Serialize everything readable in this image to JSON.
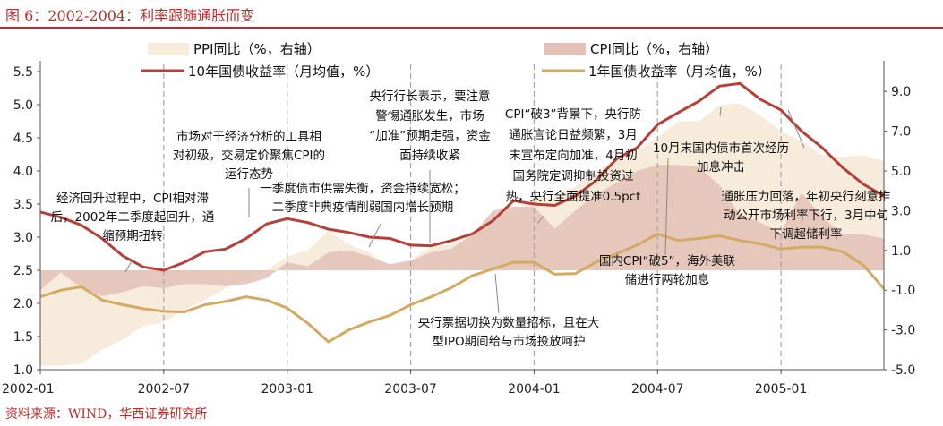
{
  "header": {
    "title": "图 6：2002-2004：利率跟随通胀而变"
  },
  "footer": {
    "source": "资料来源：WIND，华西证券研究所"
  },
  "legend": {
    "ppi": "PPI同比（%，右轴）",
    "cpi": "CPI同比（%，右轴）",
    "y10": "10年国债收益率（月均值，%）",
    "y1": "1年国债收益率（月均值，%）"
  },
  "colors": {
    "ppi": "#f7ebdc",
    "cpi": "#e3c1b6",
    "y10": "#b4403a",
    "y1": "#d3aa64",
    "title": "#b22f2a",
    "vline": "#a6a6a6"
  },
  "annotations": [
    {
      "lines": [
        "经济回升过程中，CPI相对滞",
        "后，2002年二季度起回升，通",
        "缩预期扭转"
      ]
    },
    {
      "lines": [
        "市场对于经济分析的工具相",
        "对初级，交易定价聚焦CPI的",
        "运行态势"
      ]
    },
    {
      "lines": [
        "一季度债市供需失衡，资金持续宽松；",
        "二季度非典疫情削弱国内增长预期"
      ]
    },
    {
      "lines": [
        "央行行长表示，要注意",
        "警惕通胀发生，市场",
        "“加准”预期走强，资金",
        "面持续收紧"
      ]
    },
    {
      "lines": [
        "CPI“破3”背景下，央行防",
        "通胀言论日益频繁，3月",
        "末宣布定向加准，4月初",
        "国务院定调抑制投资过",
        "热，央行全面提准0.5pct"
      ]
    },
    {
      "lines": [
        "10月末国内债市首次经历",
        "加息冲击"
      ]
    },
    {
      "lines": [
        "通胀压力回落，年初央行刻意推",
        "动公开市场利率下行，3月中旬",
        "下调超储利率"
      ]
    },
    {
      "lines": [
        "国内CPI“破5”，海外美联",
        "储进行两轮加息"
      ]
    },
    {
      "lines": [
        "央行票据切换为数量招标，且在大",
        "型IPO期间给与市场投放呵护"
      ]
    }
  ],
  "chart_data": {
    "type": "line",
    "x": [
      "2002-01",
      "2002-02",
      "2002-03",
      "2002-04",
      "2002-05",
      "2002-06",
      "2002-07",
      "2002-08",
      "2002-09",
      "2002-10",
      "2002-11",
      "2002-12",
      "2003-01",
      "2003-02",
      "2003-03",
      "2003-04",
      "2003-05",
      "2003-06",
      "2003-07",
      "2003-08",
      "2003-09",
      "2003-10",
      "2003-11",
      "2003-12",
      "2004-01",
      "2004-02",
      "2004-03",
      "2004-04",
      "2004-05",
      "2004-06",
      "2004-07",
      "2004-08",
      "2004-09",
      "2004-10",
      "2004-11",
      "2004-12",
      "2005-01",
      "2005-02",
      "2005-03",
      "2005-04",
      "2005-05",
      "2005-06"
    ],
    "x_ticks": [
      "2002-01",
      "2002-07",
      "2003-01",
      "2003-07",
      "2004-01",
      "2004-07",
      "2005-01"
    ],
    "y_left": {
      "ticks": [
        "1.0",
        "1.5",
        "2.0",
        "2.5",
        "3.0",
        "3.5",
        "4.0",
        "4.5",
        "5.0",
        "5.5"
      ],
      "ylim": [
        1.0,
        5.5
      ]
    },
    "y_right": {
      "ticks": [
        "-5.0",
        "-3.0",
        "-1.0",
        "1.0",
        "3.0",
        "5.0",
        "7.0",
        "9.0"
      ],
      "ylim": [
        -5.0,
        10.0
      ]
    },
    "vlines": [
      "2002-07",
      "2003-01",
      "2003-07",
      "2004-01",
      "2004-07",
      "2005-01"
    ],
    "series": [
      {
        "name": "PPI同比（%，右轴）",
        "kind": "area",
        "axis": "right",
        "values": [
          -4.8,
          -4.8,
          -4.7,
          -4.0,
          -3.5,
          -2.8,
          -2.6,
          -2.0,
          -1.5,
          -0.9,
          -0.5,
          0.0,
          0.7,
          1.0,
          2.0,
          1.3,
          0.9,
          0.1,
          0.5,
          1.2,
          1.3,
          1.8,
          2.5,
          3.0,
          3.6,
          3.7,
          4.2,
          5.0,
          5.5,
          6.0,
          6.7,
          7.5,
          7.5,
          8.3,
          8.4,
          7.8,
          7.0,
          6.5,
          5.8,
          5.7,
          5.8,
          5.5
        ]
      },
      {
        "name": "CPI同比（%，右轴）",
        "kind": "area",
        "axis": "right",
        "values": [
          -1.0,
          -0.1,
          -0.9,
          -1.3,
          -1.1,
          -0.8,
          -0.9,
          -0.7,
          -0.7,
          -0.8,
          -0.7,
          -0.4,
          0.4,
          0.2,
          0.9,
          1.0,
          0.7,
          0.3,
          0.5,
          0.9,
          1.1,
          1.8,
          3.0,
          3.2,
          3.2,
          2.1,
          3.0,
          3.8,
          4.4,
          5.0,
          5.3,
          5.3,
          5.2,
          4.3,
          2.8,
          2.4,
          1.9,
          3.9,
          2.7,
          1.8,
          1.8,
          1.6
        ]
      },
      {
        "name": "10年国债收益率（月均值，%）",
        "kind": "line",
        "axis": "left",
        "values": [
          3.38,
          3.3,
          3.18,
          2.98,
          2.72,
          2.55,
          2.5,
          2.62,
          2.78,
          2.82,
          2.98,
          3.2,
          3.28,
          3.22,
          3.12,
          3.07,
          3.0,
          2.98,
          2.88,
          2.87,
          2.95,
          3.05,
          3.25,
          3.55,
          3.5,
          3.48,
          3.62,
          3.85,
          4.18,
          4.35,
          4.7,
          4.88,
          5.05,
          5.28,
          5.32,
          5.08,
          4.92,
          4.6,
          4.35,
          4.05,
          3.8,
          3.62
        ]
      },
      {
        "name": "1年国债收益率（月均值，%）",
        "kind": "line",
        "axis": "left",
        "values": [
          2.1,
          2.2,
          2.25,
          2.05,
          1.98,
          1.92,
          1.88,
          1.87,
          1.98,
          2.03,
          2.1,
          2.05,
          1.93,
          1.7,
          1.42,
          1.6,
          1.72,
          1.82,
          1.98,
          2.1,
          2.24,
          2.42,
          2.52,
          2.62,
          2.62,
          2.44,
          2.45,
          2.62,
          2.75,
          2.88,
          3.05,
          2.95,
          2.98,
          3.02,
          2.95,
          2.9,
          2.82,
          2.85,
          2.85,
          2.78,
          2.58,
          2.22
        ]
      }
    ]
  }
}
